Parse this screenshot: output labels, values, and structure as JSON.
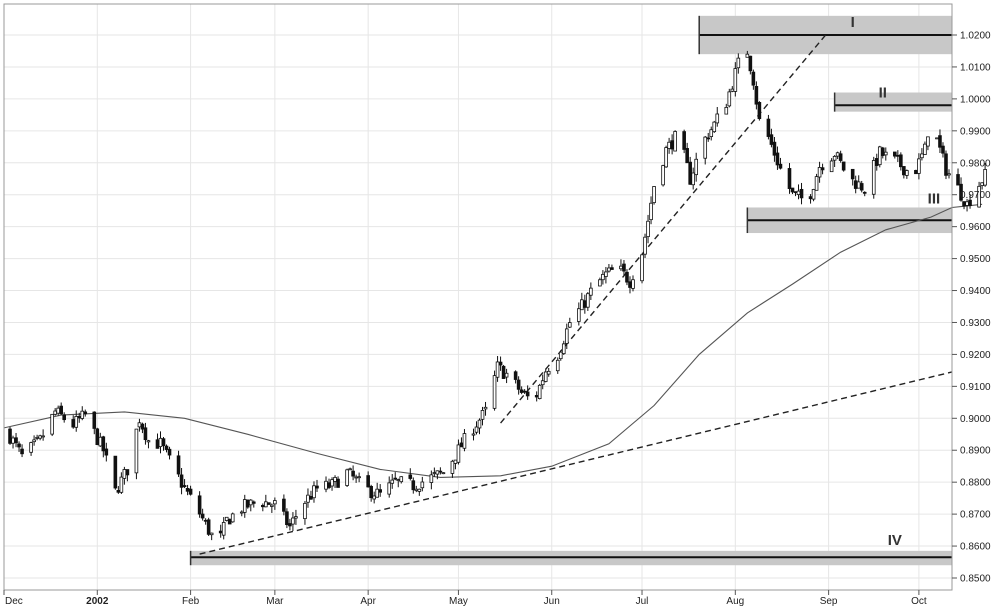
{
  "chart_data": {
    "type": "candlestick",
    "title": "",
    "xlabel": "",
    "ylabel": "",
    "ylim": [
      0.85,
      1.02
    ],
    "grid": true,
    "y_ticks": [
      0.85,
      0.86,
      0.87,
      0.88,
      0.89,
      0.9,
      0.91,
      0.92,
      0.93,
      0.94,
      0.95,
      0.96,
      0.97,
      0.98,
      0.99,
      1.0,
      1.01,
      1.02
    ],
    "y_tick_labels": [
      "0.8500",
      "0.8600",
      "0.8700",
      "0.8800",
      "0.8900",
      "0.9000",
      "0.9100",
      "0.9200",
      "0.9300",
      "0.9400",
      "0.9500",
      "0.9600",
      "0.9700",
      "0.9800",
      "0.9900",
      "1.0000",
      "1.0100",
      "1.0200"
    ],
    "x_range": [
      "2001-12-01",
      "2002-10-12"
    ],
    "x_ticks": [
      {
        "date": "2001-12-01",
        "label": "Dec"
      },
      {
        "date": "2002-01-01",
        "label": "2002"
      },
      {
        "date": "2002-02-01",
        "label": "Feb"
      },
      {
        "date": "2002-03-01",
        "label": "Mar"
      },
      {
        "date": "2002-04-01",
        "label": "Apr"
      },
      {
        "date": "2002-05-01",
        "label": "May"
      },
      {
        "date": "2002-06-01",
        "label": "Jun"
      },
      {
        "date": "2002-07-01",
        "label": "Jul"
      },
      {
        "date": "2002-08-01",
        "label": "Aug"
      },
      {
        "date": "2002-09-01",
        "label": "Sep"
      },
      {
        "date": "2002-10-01",
        "label": "Oct"
      }
    ],
    "price_anchors": [
      [
        "2001-12-02",
        0.896
      ],
      [
        "2001-12-07",
        0.888
      ],
      [
        "2001-12-13",
        0.893
      ],
      [
        "2001-12-18",
        0.902
      ],
      [
        "2001-12-24",
        0.898
      ],
      [
        "2001-12-28",
        0.901
      ],
      [
        "2002-01-03",
        0.89
      ],
      [
        "2002-01-07",
        0.877
      ],
      [
        "2002-01-11",
        0.884
      ],
      [
        "2002-01-15",
        0.9
      ],
      [
        "2002-01-18",
        0.893
      ],
      [
        "2002-01-22",
        0.892
      ],
      [
        "2002-01-26",
        0.885
      ],
      [
        "2002-01-30",
        0.878
      ],
      [
        "2002-02-03",
        0.872
      ],
      [
        "2002-02-07",
        0.865
      ],
      [
        "2002-02-10",
        0.86
      ],
      [
        "2002-02-13",
        0.868
      ],
      [
        "2002-02-18",
        0.872
      ],
      [
        "2002-02-24",
        0.874
      ],
      [
        "2002-03-01",
        0.873
      ],
      [
        "2002-03-06",
        0.866
      ],
      [
        "2002-03-10",
        0.873
      ],
      [
        "2002-03-15",
        0.878
      ],
      [
        "2002-03-20",
        0.879
      ],
      [
        "2002-03-25",
        0.883
      ],
      [
        "2002-03-31",
        0.878
      ],
      [
        "2002-04-05",
        0.876
      ],
      [
        "2002-04-10",
        0.88
      ],
      [
        "2002-04-16",
        0.879
      ],
      [
        "2002-04-21",
        0.881
      ],
      [
        "2002-04-26",
        0.883
      ],
      [
        "2002-05-01",
        0.89
      ],
      [
        "2002-05-05",
        0.896
      ],
      [
        "2002-05-10",
        0.902
      ],
      [
        "2002-05-14",
        0.916
      ],
      [
        "2002-05-18",
        0.913
      ],
      [
        "2002-05-22",
        0.908
      ],
      [
        "2002-05-26",
        0.905
      ],
      [
        "2002-05-30",
        0.915
      ],
      [
        "2002-06-03",
        0.92
      ],
      [
        "2002-06-07",
        0.93
      ],
      [
        "2002-06-11",
        0.935
      ],
      [
        "2002-06-15",
        0.941
      ],
      [
        "2002-06-19",
        0.945
      ],
      [
        "2002-06-23",
        0.947
      ],
      [
        "2002-06-27",
        0.943
      ],
      [
        "2002-07-01",
        0.952
      ],
      [
        "2002-07-03",
        0.962
      ],
      [
        "2002-07-05",
        0.973
      ],
      [
        "2002-07-09",
        0.984
      ],
      [
        "2002-07-13",
        0.989
      ],
      [
        "2002-07-17",
        0.975
      ],
      [
        "2002-07-21",
        0.986
      ],
      [
        "2002-07-25",
        0.992
      ],
      [
        "2002-07-29",
        0.999
      ],
      [
        "2002-08-02",
        1.011
      ],
      [
        "2002-08-05",
        1.015
      ],
      [
        "2002-08-07",
        1.006
      ],
      [
        "2002-08-09",
        0.993
      ],
      [
        "2002-08-12",
        0.988
      ],
      [
        "2002-08-16",
        0.978
      ],
      [
        "2002-08-20",
        0.97
      ],
      [
        "2002-08-25",
        0.968
      ],
      [
        "2002-08-29",
        0.979
      ],
      [
        "2002-09-03",
        0.983
      ],
      [
        "2002-09-08",
        0.975
      ],
      [
        "2002-09-13",
        0.972
      ],
      [
        "2002-09-18",
        0.983
      ],
      [
        "2002-09-24",
        0.98
      ],
      [
        "2002-09-29",
        0.976
      ],
      [
        "2002-10-03",
        0.984
      ],
      [
        "2002-10-05",
        0.996
      ],
      [
        "2002-10-07",
        0.987
      ],
      [
        "2002-10-10",
        0.978
      ],
      [
        "2002-10-14",
        0.972
      ],
      [
        "2002-10-17",
        0.967
      ],
      [
        "2002-10-20",
        0.972
      ],
      [
        "2002-10-23",
        0.976
      ]
    ],
    "moving_average": [
      [
        "2001-12-01",
        0.897
      ],
      [
        "2001-12-20",
        0.901
      ],
      [
        "2002-01-10",
        0.902
      ],
      [
        "2002-01-30",
        0.9
      ],
      [
        "2002-02-20",
        0.895
      ],
      [
        "2002-03-15",
        0.889
      ],
      [
        "2002-04-05",
        0.884
      ],
      [
        "2002-04-25",
        0.8815
      ],
      [
        "2002-05-15",
        0.882
      ],
      [
        "2002-06-01",
        0.885
      ],
      [
        "2002-06-20",
        0.892
      ],
      [
        "2002-07-05",
        0.904
      ],
      [
        "2002-07-20",
        0.92
      ],
      [
        "2002-08-05",
        0.933
      ],
      [
        "2002-08-20",
        0.942
      ],
      [
        "2002-09-05",
        0.952
      ],
      [
        "2002-09-20",
        0.959
      ],
      [
        "2002-10-05",
        0.963
      ],
      [
        "2002-10-12",
        0.966
      ],
      [
        "2002-10-17",
        0.9665
      ],
      [
        "2002-10-22",
        0.967
      ]
    ],
    "trendlines": [
      {
        "style": "dashed",
        "from": [
          "2002-02-04",
          0.8575
        ],
        "to": [
          "2002-10-12",
          0.9145
        ]
      },
      {
        "style": "dashed",
        "from": [
          "2002-05-15",
          0.8985
        ],
        "to": [
          "2002-08-31",
          1.02
        ]
      }
    ],
    "zones": [
      {
        "label": "I",
        "from": "2002-07-20",
        "to": "2002-10-12",
        "level": 1.02,
        "band": [
          1.014,
          1.026
        ]
      },
      {
        "label": "II",
        "from": "2002-09-03",
        "to": "2002-10-12",
        "level": 0.998,
        "band": [
          0.996,
          1.002
        ]
      },
      {
        "label": "III",
        "from": "2002-08-05",
        "to": "2002-10-12",
        "level": 0.962,
        "band": [
          0.958,
          0.966
        ]
      },
      {
        "label": "IV",
        "from": "2002-02-01",
        "to": "2002-10-12",
        "level": 0.8565,
        "band": [
          0.854,
          0.8585
        ]
      }
    ]
  }
}
